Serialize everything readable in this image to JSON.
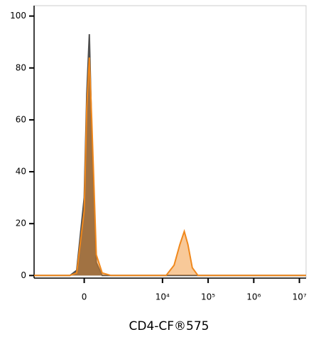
{
  "chart_data": {
    "type": "area",
    "x_label": "CD4-CF®575",
    "xscale": "biexponential",
    "x": [
      -2400,
      -600,
      -300,
      -150,
      0,
      50,
      100,
      150,
      250,
      400,
      700,
      1500,
      5000,
      12000,
      18000,
      24000,
      30000,
      36000,
      45000,
      60000,
      100000,
      1000000,
      14000000
    ],
    "series": [
      {
        "color": "#505050",
        "values": [
          0,
          0,
          0,
          2,
          30,
          70,
          93,
          55,
          5,
          0,
          0,
          0,
          0,
          0,
          0,
          0,
          0,
          0,
          0,
          0,
          0,
          0,
          0
        ]
      },
      {
        "color": "#f0881c",
        "values": [
          0,
          0,
          0,
          1,
          25,
          65,
          84,
          60,
          8,
          1,
          0,
          0,
          0,
          0,
          4,
          12,
          17,
          12,
          3,
          0,
          0,
          0,
          0
        ]
      }
    ],
    "xlim": [
      -2400,
      14000000
    ],
    "xticks": [
      0,
      {
        "value": 10000,
        "label": "10⁴"
      },
      {
        "value": 100000,
        "label": "10⁵"
      },
      {
        "value": 1000000,
        "label": "10⁶"
      },
      {
        "value": 10000000,
        "label": "10⁷"
      }
    ],
    "ylim": [
      -1,
      104
    ],
    "yticks": [
      0,
      20,
      40,
      60,
      80,
      100
    ]
  }
}
